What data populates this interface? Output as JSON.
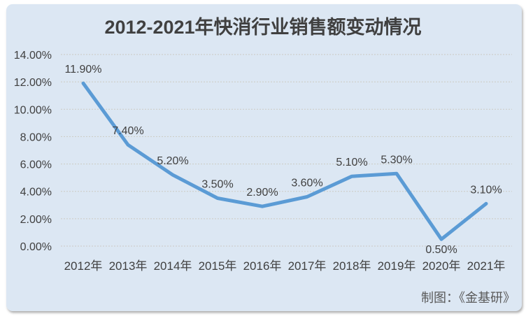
{
  "chart_data": {
    "type": "line",
    "title": "2012-2021年快消行业销售额变动情况",
    "categories": [
      "2012年",
      "2013年",
      "2014年",
      "2015年",
      "2016年",
      "2017年",
      "2018年",
      "2019年",
      "2020年",
      "2021年"
    ],
    "values": [
      11.9,
      7.4,
      5.2,
      3.5,
      2.9,
      3.6,
      5.1,
      5.3,
      0.5,
      3.1
    ],
    "data_labels": [
      "11.90%",
      "7.40%",
      "5.20%",
      "3.50%",
      "2.90%",
      "3.60%",
      "5.10%",
      "5.30%",
      "0.50%",
      "3.10%"
    ],
    "y_tick_values": [
      0,
      2,
      4,
      6,
      8,
      10,
      12,
      14
    ],
    "y_tick_labels": [
      "0.00%",
      "2.00%",
      "4.00%",
      "6.00%",
      "8.00%",
      "10.00%",
      "12.00%",
      "14.00%"
    ],
    "ylim": [
      0,
      14
    ],
    "xlabel": "",
    "ylabel": "",
    "grid": true,
    "legend": "none",
    "colors": {
      "line": "#5B9BD5",
      "plot_background": "#dce7f3",
      "gridline": "#c9c5bb",
      "axis_text": "#404040",
      "data_label_text": "#404040",
      "title_text": "#404040",
      "footer_text": "#595959"
    }
  },
  "footer": {
    "text": "制图：《金基研》"
  }
}
